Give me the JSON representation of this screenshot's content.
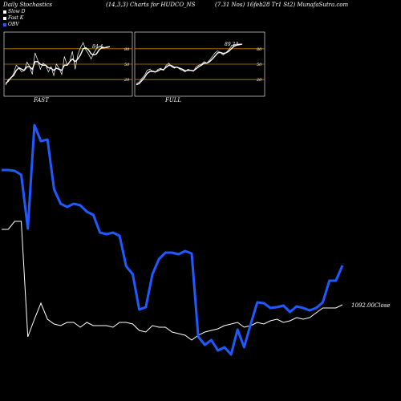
{
  "header": {
    "left": "Daily Stochastics",
    "center": "(14,3,3) Charts for HUDCO_NS",
    "right": "(7.31 Nos) 16feb28  Tr1 St2) MunafaSutra.com"
  },
  "legend": [
    {
      "label": "Slow D",
      "color": "#ffffff"
    },
    {
      "label": "Fast K",
      "color": "#ffffff"
    },
    {
      "label": "OBV",
      "color": "#1e5aff"
    }
  ],
  "colors": {
    "obv": "#1e5aff",
    "price": "#ffffff",
    "level": "#c08000",
    "background": "#000000"
  },
  "panels": [
    {
      "name": "FAST",
      "value_label": "84.4",
      "levels": [
        "80",
        "50",
        "20"
      ]
    },
    {
      "name": "FULL",
      "value_label": "89.23",
      "levels": [
        "80",
        "50",
        "20"
      ]
    }
  ],
  "chart_data": [
    {
      "type": "line",
      "title": "FAST",
      "ylim": [
        0,
        100
      ],
      "series": [
        {
          "name": "Fast K",
          "values": [
            9,
            20,
            22,
            32,
            48,
            42,
            35,
            38,
            54,
            45,
            30,
            72,
            58,
            40,
            52,
            48,
            35,
            45,
            28,
            50,
            42,
            30,
            65,
            48,
            55,
            75,
            40,
            68,
            82,
            92,
            78,
            70,
            60,
            72,
            80,
            85,
            84,
            82,
            84,
            84
          ]
        },
        {
          "name": "Slow D",
          "values": [
            12,
            17,
            24,
            28,
            38,
            43,
            40,
            38,
            45,
            45,
            40,
            55,
            55,
            50,
            48,
            48,
            43,
            42,
            38,
            42,
            40,
            38,
            48,
            48,
            55,
            60,
            55,
            60,
            68,
            80,
            82,
            78,
            70,
            68,
            70,
            78,
            82,
            82,
            83,
            84
          ]
        }
      ]
    },
    {
      "type": "line",
      "title": "FULL",
      "ylim": [
        0,
        100
      ],
      "series": [
        {
          "name": "Fast K",
          "values": [
            12,
            15,
            22,
            28,
            38,
            40,
            36,
            34,
            40,
            42,
            38,
            48,
            52,
            45,
            42,
            45,
            40,
            38,
            35,
            40,
            38,
            36,
            45,
            48,
            50,
            55,
            52,
            58,
            65,
            72,
            76,
            72,
            68,
            72,
            78,
            85,
            88,
            89,
            89,
            89
          ]
        },
        {
          "name": "Slow D",
          "values": [
            10,
            12,
            18,
            24,
            32,
            36,
            36,
            35,
            37,
            40,
            39,
            44,
            48,
            47,
            44,
            44,
            42,
            40,
            37,
            38,
            38,
            37,
            41,
            45,
            48,
            52,
            52,
            55,
            60,
            66,
            72,
            73,
            71,
            72,
            75,
            80,
            85,
            87,
            88,
            89
          ]
        }
      ]
    },
    {
      "type": "line",
      "title": "",
      "series": [
        {
          "name": "OBV",
          "values": [
            212,
            212,
            213,
            218,
            285,
            156,
            176,
            174,
            236,
            254,
            258,
            254,
            256,
            264,
            268,
            290,
            292,
            290,
            294,
            332,
            342,
            386,
            383,
            342,
            323,
            315,
            315,
            317,
            313,
            316,
            420,
            430,
            424,
            437,
            433,
            442,
            411,
            433,
            404,
            377,
            378,
            384,
            383,
            381,
            389,
            382,
            384,
            387,
            384,
            377,
            350,
            350,
            331
          ]
        },
        {
          "name": "Close",
          "values": [
            286,
            286,
            276,
            276,
            420,
            398,
            378,
            398,
            404,
            406,
            402,
            402,
            408,
            402,
            406,
            406,
            406,
            408,
            402,
            402,
            404,
            412,
            414,
            406,
            408,
            408,
            414,
            416,
            418,
            424,
            418,
            414,
            412,
            410,
            406,
            404,
            402,
            408,
            406,
            402,
            404,
            400,
            398,
            402,
            400,
            396,
            398,
            396,
            390,
            384,
            384,
            384,
            380
          ]
        }
      ]
    }
  ],
  "close_label": "1092.00Close"
}
